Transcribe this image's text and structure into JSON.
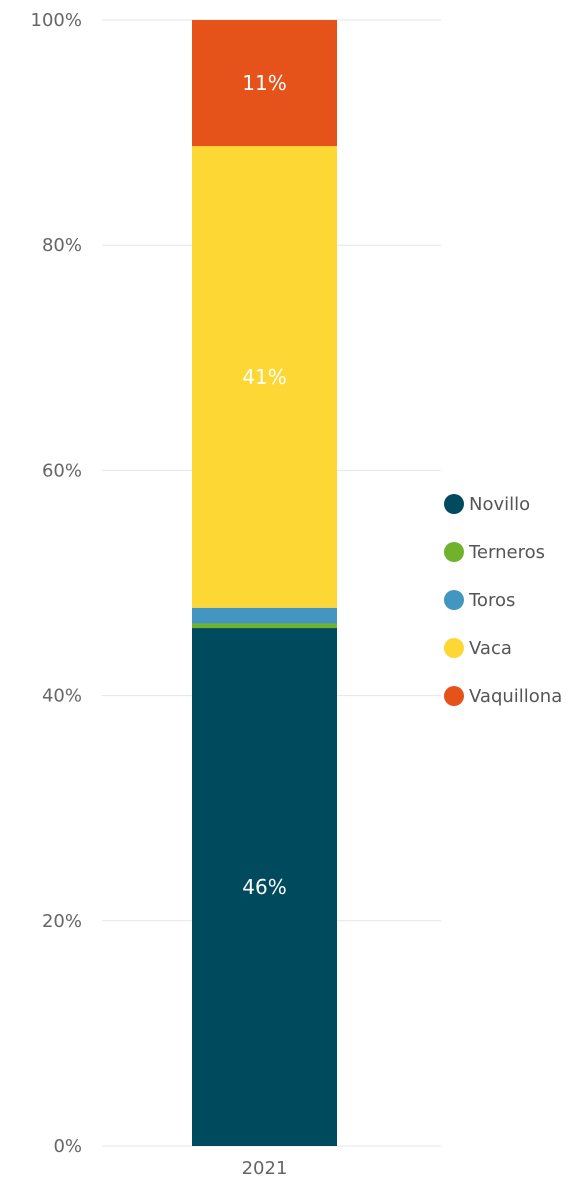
{
  "chart_data": {
    "type": "bar",
    "stacked": "percent",
    "categories": [
      "2021"
    ],
    "series": [
      {
        "name": "Novillo",
        "values": [
          46.0
        ],
        "label": "46%",
        "color": "#004a5e"
      },
      {
        "name": "Terneros",
        "values": [
          0.4
        ],
        "label": "",
        "color": "#71b22c"
      },
      {
        "name": "Toros",
        "values": [
          1.4
        ],
        "label": "",
        "color": "#4396bf"
      },
      {
        "name": "Vaca",
        "values": [
          41.0
        ],
        "label": "41%",
        "color": "#fdd835"
      },
      {
        "name": "Vaquillona",
        "values": [
          11.2
        ],
        "label": "11%",
        "color": "#e6531a"
      }
    ],
    "ylim": [
      0,
      100
    ],
    "yticks": [
      "0%",
      "20%",
      "40%",
      "60%",
      "80%",
      "100%"
    ],
    "grid": true,
    "legend_position": "right",
    "title": "",
    "xlabel": "",
    "ylabel": ""
  }
}
